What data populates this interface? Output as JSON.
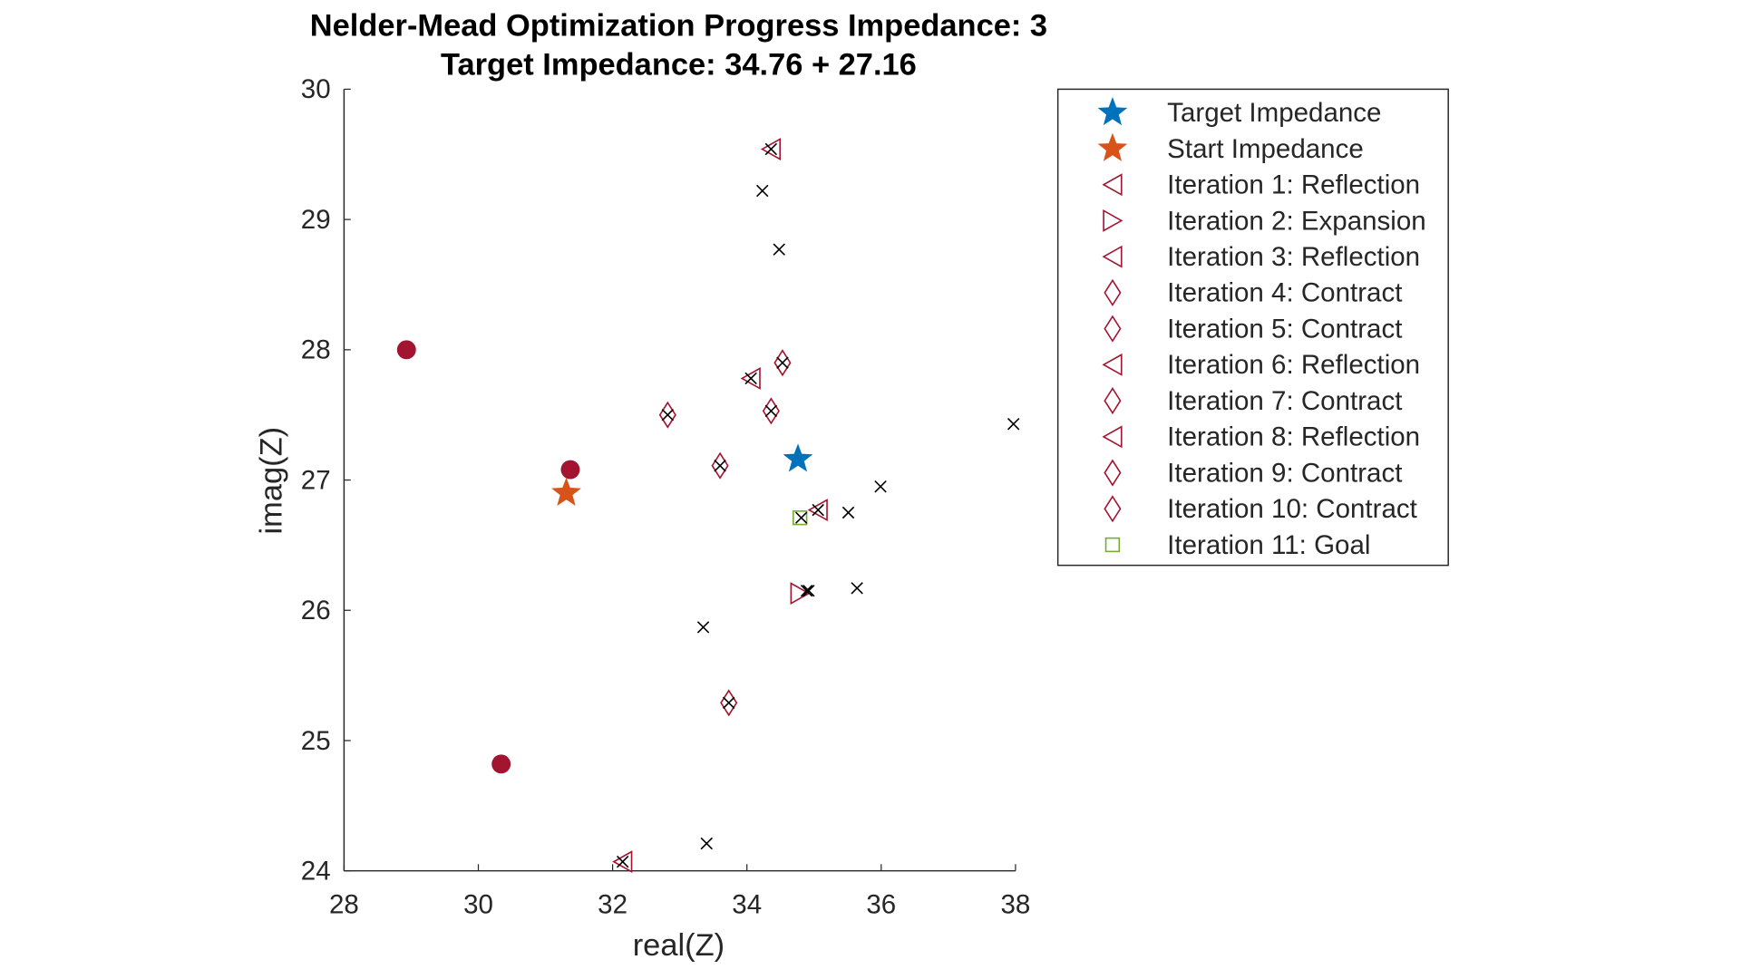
{
  "chart_data": {
    "type": "scatter",
    "title": [
      "Nelder-Mead Optimization Progress Impedance: 3",
      "Target Impedance: 34.76 + 27.16"
    ],
    "xlabel": "real(Z)",
    "ylabel": "imag(Z)",
    "xlim": [
      28,
      38
    ],
    "ylim": [
      24,
      30
    ],
    "xticks": [
      28,
      30,
      32,
      34,
      36,
      38
    ],
    "yticks": [
      24,
      25,
      26,
      27,
      28,
      29,
      30
    ],
    "grid": false,
    "legend_position": "outside-right-top",
    "colors": {
      "target": "#0072BD",
      "start": "#D95319",
      "iteration": "#A2142F",
      "goal": "#77AC30",
      "evaluated": "#000000"
    },
    "series": [
      {
        "name": "Target Impedance",
        "marker": "star",
        "color": "#0072BD",
        "points": [
          [
            34.76,
            27.16
          ]
        ]
      },
      {
        "name": "Start Impedance",
        "marker": "star",
        "color": "#D95319",
        "points": [
          [
            31.31,
            26.9
          ]
        ]
      },
      {
        "name": "Iteration 1: Reflection",
        "marker": "triangle-left",
        "color": "#A2142F",
        "points": [
          [
            32.15,
            24.07
          ]
        ]
      },
      {
        "name": "Iteration 2: Expansion",
        "marker": "triangle-right",
        "color": "#A2142F",
        "points": [
          [
            34.79,
            26.13
          ]
        ]
      },
      {
        "name": "Iteration 3: Reflection",
        "marker": "triangle-left",
        "color": "#A2142F",
        "points": [
          [
            34.36,
            29.54
          ]
        ]
      },
      {
        "name": "Iteration 4: Contract",
        "marker": "diamond",
        "color": "#A2142F",
        "points": [
          [
            33.73,
            25.29
          ]
        ]
      },
      {
        "name": "Iteration 5: Contract",
        "marker": "diamond",
        "color": "#A2142F",
        "points": [
          [
            32.82,
            27.5
          ]
        ]
      },
      {
        "name": "Iteration 6: Reflection",
        "marker": "triangle-left",
        "color": "#A2142F",
        "points": [
          [
            34.06,
            27.78
          ]
        ]
      },
      {
        "name": "Iteration 7: Contract",
        "marker": "diamond",
        "color": "#A2142F",
        "points": [
          [
            34.53,
            27.9
          ]
        ]
      },
      {
        "name": "Iteration 8: Reflection",
        "marker": "triangle-left",
        "color": "#A2142F",
        "points": [
          [
            35.06,
            26.77
          ]
        ]
      },
      {
        "name": "Iteration 9: Contract",
        "marker": "diamond",
        "color": "#A2142F",
        "points": [
          [
            34.36,
            27.53
          ]
        ]
      },
      {
        "name": "Iteration 10: Contract",
        "marker": "diamond",
        "color": "#A2142F",
        "points": [
          [
            33.6,
            27.11
          ]
        ]
      },
      {
        "name": "Iteration 11: Goal",
        "marker": "square",
        "color": "#77AC30",
        "points": [
          [
            34.79,
            26.71
          ]
        ]
      },
      {
        "marker": "circle-filled",
        "color": "#A2142F",
        "points": [
          [
            28.93,
            28.0
          ],
          [
            31.37,
            27.08
          ],
          [
            30.34,
            24.82
          ]
        ]
      },
      {
        "marker": "x",
        "color": "#000000",
        "points": [
          [
            34.23,
            29.22
          ],
          [
            34.48,
            28.77
          ],
          [
            37.97,
            27.43
          ],
          [
            35.99,
            26.95
          ],
          [
            35.51,
            26.75
          ],
          [
            34.81,
            26.71
          ],
          [
            34.89,
            26.15
          ],
          [
            35.64,
            26.17
          ],
          [
            33.35,
            25.87
          ],
          [
            33.4,
            24.21
          ],
          [
            34.36,
            29.54
          ],
          [
            34.06,
            27.78
          ],
          [
            34.53,
            27.9
          ],
          [
            32.82,
            27.5
          ],
          [
            34.36,
            27.53
          ],
          [
            33.6,
            27.11
          ],
          [
            35.06,
            26.77
          ],
          [
            34.92,
            26.15
          ],
          [
            33.73,
            25.29
          ],
          [
            32.15,
            24.07
          ]
        ]
      }
    ]
  }
}
